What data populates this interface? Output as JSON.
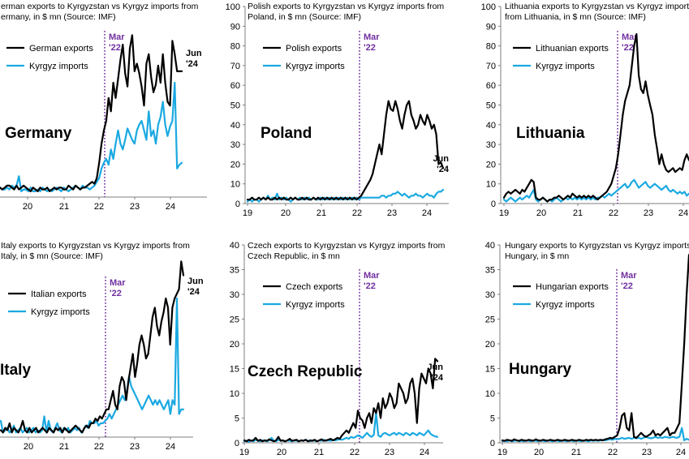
{
  "colors": {
    "exports": "#000000",
    "imports": "#1ba9e1",
    "marker": "#7030a0",
    "axis": "#7f7f7f"
  },
  "marker_label": [
    "Mar",
    "'22"
  ],
  "end_label": [
    "Jun",
    "'24"
  ],
  "chart_data": [
    {
      "type": "line",
      "title": [
        "erman exports to Kyrgyzstan vs Kyrgyz imports from",
        "ermany, in $ mn (Source: IMF)"
      ],
      "country": "Germany",
      "x_ticks": [
        "20",
        "21",
        "22",
        "23",
        "24"
      ],
      "y_ticks": [],
      "ylim": [
        0,
        100
      ],
      "series": [
        {
          "name": "German exports",
          "values": [
            5,
            4,
            5,
            6,
            6,
            5,
            4,
            6,
            4,
            5,
            6,
            5,
            4,
            3,
            5,
            4,
            3,
            5,
            4,
            4,
            5,
            3,
            4,
            5,
            4,
            5,
            5,
            4,
            4,
            6,
            5,
            4,
            6,
            5,
            4,
            5,
            5,
            6,
            7,
            8,
            7,
            10,
            18,
            28,
            35,
            40,
            52,
            45,
            60,
            52,
            62,
            72,
            80,
            65,
            58,
            78,
            85,
            66,
            70,
            65,
            58,
            48,
            70,
            75,
            63,
            55,
            59,
            69,
            60,
            75,
            60,
            50,
            48,
            82,
            75,
            66,
            66,
            66
          ]
        },
        {
          "name": "Kyrgyz imports",
          "values": [
            5,
            4,
            4,
            5,
            4,
            6,
            5,
            6,
            11,
            3,
            4,
            4,
            3,
            5,
            3,
            3,
            4,
            3,
            5,
            4,
            3,
            4,
            3,
            4,
            5,
            4,
            3,
            5,
            4,
            3,
            4,
            5,
            6,
            5,
            4,
            6,
            5,
            5,
            4,
            5,
            6,
            8,
            10,
            15,
            18,
            20,
            17,
            25,
            20,
            28,
            35,
            28,
            25,
            30,
            36,
            33,
            30,
            28,
            35,
            38,
            40,
            35,
            30,
            45,
            32,
            35,
            28,
            38,
            42,
            50,
            38,
            32,
            37,
            40,
            60,
            15,
            17,
            18
          ]
        }
      ]
    },
    {
      "type": "line",
      "title": [
        "Polish exports to Kyrgyzstan vs Kyrgyz imports from",
        "Poland, in $ mn (Source: IMF)"
      ],
      "country": "Poland",
      "x_ticks": [
        "19",
        "20",
        "21",
        "22",
        "23",
        "24"
      ],
      "y_ticks": [
        "0",
        "10",
        "20",
        "30",
        "40",
        "50",
        "60",
        "70",
        "80",
        "90",
        "100"
      ],
      "ylim": [
        0,
        100
      ],
      "series": [
        {
          "name": "Polish exports",
          "values": [
            2,
            2,
            3,
            2,
            2,
            3,
            2,
            3,
            2,
            3,
            2,
            2,
            3,
            2,
            3,
            2,
            3,
            2,
            2,
            3,
            2,
            3,
            2,
            2,
            3,
            2,
            3,
            2,
            2,
            3,
            2,
            3,
            2,
            3,
            2,
            3,
            2,
            3,
            2,
            3,
            2,
            3,
            2,
            3,
            2,
            3,
            2,
            3,
            2,
            3,
            4,
            6,
            8,
            10,
            12,
            15,
            20,
            25,
            30,
            25,
            35,
            45,
            52,
            48,
            47,
            52,
            48,
            42,
            38,
            45,
            50,
            52,
            45,
            42,
            38,
            40,
            45,
            42,
            40,
            45,
            42,
            38,
            40,
            35,
            20,
            21,
            18
          ]
        },
        {
          "name": "Kyrgyz imports",
          "values": [
            1,
            2,
            1,
            2,
            2,
            1,
            2,
            3,
            2,
            4,
            2,
            3,
            2,
            5,
            2,
            3,
            2,
            3,
            2,
            1,
            2,
            3,
            2,
            3,
            2,
            3,
            2,
            3,
            2,
            3,
            2,
            2,
            3,
            2,
            3,
            2,
            3,
            2,
            3,
            2,
            3,
            2,
            3,
            2,
            3,
            2,
            3,
            2,
            3,
            2,
            3,
            3,
            3,
            3,
            3,
            3,
            3,
            3,
            3,
            4,
            4,
            3,
            4,
            4,
            5,
            5,
            6,
            5,
            4,
            5,
            4,
            3,
            4,
            4,
            5,
            4,
            4,
            3,
            4,
            5,
            4,
            4,
            3,
            5,
            6,
            6,
            7
          ]
        }
      ]
    },
    {
      "type": "line",
      "title": [
        "Lithuania exports to Kyrgyzstan vs Kyrgyz imports",
        "from Lithuania, in $ mn (Source: IMF)"
      ],
      "country": "Lithuania",
      "x_ticks": [
        "19",
        "20",
        "21",
        "22",
        "23",
        "24"
      ],
      "y_ticks": [
        "0",
        "10",
        "20",
        "30",
        "40",
        "50",
        "60",
        "70",
        "80",
        "90",
        "100"
      ],
      "ylim": [
        0,
        100
      ],
      "series": [
        {
          "name": "Lithuanian exports",
          "values": [
            3,
            5,
            6,
            5,
            6,
            7,
            6,
            5,
            7,
            6,
            8,
            10,
            12,
            11,
            3,
            2,
            2,
            3,
            2,
            1,
            2,
            2,
            3,
            3,
            4,
            3,
            2,
            3,
            4,
            3,
            5,
            4,
            3,
            4,
            3,
            4,
            3,
            4,
            3,
            4,
            3,
            2,
            3,
            4,
            5,
            6,
            8,
            10,
            14,
            18,
            25,
            35,
            45,
            52,
            56,
            60,
            70,
            80,
            86,
            65,
            58,
            56,
            62,
            55,
            50,
            45,
            35,
            28,
            20,
            25,
            20,
            17,
            16,
            17,
            18,
            16,
            17,
            18,
            17,
            22,
            25,
            22
          ]
        },
        {
          "name": "Kyrgyz imports",
          "values": [
            2,
            1,
            2,
            3,
            2,
            1,
            2,
            3,
            2,
            3,
            4,
            3,
            5,
            7,
            2,
            1,
            2,
            3,
            2,
            1,
            2,
            1,
            2,
            3,
            2,
            1,
            2,
            3,
            2,
            3,
            2,
            3,
            2,
            3,
            2,
            3,
            2,
            3,
            2,
            3,
            2,
            3,
            3,
            4,
            3,
            4,
            5,
            4,
            5,
            6,
            7,
            8,
            9,
            10,
            8,
            9,
            11,
            12,
            10,
            8,
            9,
            10,
            11,
            9,
            8,
            9,
            10,
            9,
            8,
            7,
            8,
            9,
            7,
            6,
            7,
            6,
            5,
            6,
            5,
            6,
            4,
            5
          ]
        }
      ]
    },
    {
      "type": "line",
      "title": [
        "Italy exports to Kyrgyzstan vs Kyrgyz imports from",
        "Italy, in $ mn (Source: IMF)"
      ],
      "country": "Italy",
      "x_ticks": [
        "20",
        "21",
        "22",
        "23",
        "24"
      ],
      "y_ticks": [],
      "ylim": [
        0,
        40
      ],
      "series": [
        {
          "name": "Italian exports",
          "values": [
            1.5,
            1,
            2,
            1.5,
            3,
            1,
            2,
            1.5,
            1,
            2,
            3.5,
            1.5,
            1,
            2,
            1,
            1.5,
            2,
            1,
            1.5,
            2,
            1.5,
            1,
            2,
            1.5,
            1,
            2,
            1.5,
            2,
            1,
            2,
            1.5,
            1,
            1.5,
            2,
            2.5,
            2,
            1.5,
            1,
            2,
            2.5,
            2,
            3,
            3,
            4,
            3.5,
            4.5,
            4,
            5,
            6,
            6,
            8,
            10,
            7,
            6,
            11,
            13,
            12,
            8,
            12,
            15,
            18,
            13,
            16,
            20,
            22,
            20,
            17,
            18,
            22,
            26,
            28,
            24,
            22,
            25,
            27,
            30,
            28,
            20,
            28,
            30,
            31,
            32,
            38,
            35
          ]
        },
        {
          "name": "Kyrgyz imports",
          "values": [
            3.5,
            1,
            1.5,
            2,
            1,
            1.5,
            2.5,
            1,
            1.5,
            2,
            1,
            1.5,
            2,
            1,
            1.5,
            2,
            1,
            1.5,
            1,
            1.5,
            4.5,
            1,
            3.5,
            1.5,
            1,
            2,
            3,
            1.5,
            1,
            2,
            1.5,
            2,
            1,
            1.5,
            2,
            1.5,
            2,
            1,
            1.5,
            2.5,
            2,
            3.5,
            3,
            3,
            3.5,
            2.5,
            3,
            3,
            3.5,
            4,
            5,
            4,
            5,
            6,
            7,
            8,
            9,
            8,
            10,
            13,
            11,
            10,
            9,
            8,
            7,
            6,
            7,
            8,
            9,
            8,
            7,
            8,
            7,
            8,
            7,
            6,
            7,
            8,
            5,
            8,
            7,
            30,
            5,
            6,
            6
          ]
        }
      ]
    },
    {
      "type": "line",
      "title": [
        "Czech exports to Kyrgyzstan vs Kyrgyz imports from",
        "Czech Republic, in $ mn"
      ],
      "country": "Czech Republic",
      "x_ticks": [
        "19",
        "20",
        "21",
        "22",
        "23",
        "24"
      ],
      "y_ticks": [
        "0",
        "5",
        "10",
        "15",
        "20",
        "25",
        "30",
        "35",
        "40"
      ],
      "ylim": [
        0,
        40
      ],
      "series": [
        {
          "name": "Czech exports",
          "values": [
            0.5,
            0.3,
            0.6,
            0.4,
            0.5,
            1,
            0.4,
            0.6,
            0.3,
            0.5,
            0.4,
            0.7,
            0.5,
            0.3,
            0.5,
            1.2,
            0.4,
            0.5,
            0.3,
            0.5,
            0.8,
            0.4,
            0.5,
            0.6,
            0.3,
            0.5,
            0.4,
            0.6,
            0.3,
            0.5,
            0.4,
            0.6,
            0.3,
            0.5,
            0.7,
            0.4,
            0.5,
            0.6,
            0.8,
            0.5,
            0.7,
            1,
            0.8,
            1.5,
            2,
            2.5,
            2,
            3,
            4,
            3,
            6.5,
            5,
            4.5,
            3,
            5,
            6,
            4,
            7,
            6,
            8,
            5,
            9,
            7,
            8,
            10,
            9,
            7,
            8,
            12,
            11,
            10,
            8,
            9,
            12,
            13,
            10,
            4,
            11,
            14,
            13,
            12,
            15,
            14,
            11,
            17,
            16.5
          ]
        },
        {
          "name": "Kyrgyz imports",
          "values": [
            0.3,
            0.4,
            0.2,
            0.5,
            0.3,
            0.6,
            0.4,
            0.3,
            0.5,
            0.4,
            0.3,
            0.5,
            1,
            0.4,
            0.3,
            0.6,
            0.5,
            0.4,
            0.3,
            0.5,
            0.4,
            0.3,
            0.5,
            0.4,
            0.3,
            0.5,
            0.4,
            0.6,
            0.4,
            0.3,
            0.5,
            0.4,
            0.3,
            0.5,
            0.4,
            0.6,
            0.4,
            0.5,
            0.4,
            0.6,
            0.5,
            0.6,
            0.7,
            0.6,
            0.8,
            1,
            0.8,
            1.2,
            1,
            1.2,
            1.5,
            1.3,
            1,
            1.5,
            2,
            1.5,
            1.2,
            1.6,
            6,
            1.5,
            1.2,
            1.8,
            2,
            1.7,
            1.5,
            1.8,
            2,
            1.6,
            2,
            1.8,
            1.5,
            2,
            1.8,
            1.5,
            2,
            1.8,
            1.5,
            2,
            1.8,
            1.5,
            2,
            2.5,
            1.8,
            1.5,
            1.3,
            1.2
          ]
        }
      ]
    },
    {
      "type": "line",
      "title": [
        "Hungary exports to Kyrgyzstan vs Kyrgyz imports",
        "Hungary, in $ mn"
      ],
      "country": "Hungary",
      "x_ticks": [
        "19",
        "20",
        "21",
        "22",
        "23",
        "24"
      ],
      "y_ticks": [
        "0",
        "5",
        "10",
        "15",
        "20",
        "25",
        "30",
        "35",
        "40"
      ],
      "ylim": [
        0,
        40
      ],
      "series": [
        {
          "name": "Hungarian exports",
          "values": [
            0.5,
            0.4,
            0.6,
            0.5,
            0.4,
            0.7,
            0.5,
            0.4,
            0.6,
            0.5,
            0.4,
            0.6,
            0.5,
            0.4,
            0.7,
            0.5,
            0.4,
            0.6,
            0.5,
            0.4,
            0.6,
            0.5,
            0.4,
            0.6,
            0.5,
            0.4,
            0.6,
            0.5,
            0.4,
            0.6,
            0.5,
            0.4,
            0.6,
            0.5,
            0.4,
            0.6,
            0.5,
            0.6,
            0.5,
            0.6,
            0.5,
            0.6,
            0.5,
            0.7,
            0.8,
            1,
            0.9,
            1.2,
            1.5,
            3,
            5.5,
            6,
            3,
            2.5,
            6,
            1.2,
            1,
            1.5,
            2,
            1.5,
            1.2,
            1.5,
            1.8,
            2.5,
            1.5,
            1.8,
            1.5,
            2,
            2.5,
            3,
            1.5,
            2,
            2,
            3,
            4,
            12,
            20,
            30,
            38
          ]
        },
        {
          "name": "Kyrgyz imports",
          "values": [
            0.3,
            0.4,
            0.3,
            0.5,
            0.3,
            0.4,
            0.5,
            0.3,
            0.4,
            0.3,
            0.5,
            0.4,
            0.3,
            0.5,
            0.4,
            0.3,
            0.5,
            0.4,
            0.3,
            0.5,
            0.4,
            0.3,
            0.5,
            0.4,
            0.3,
            0.5,
            0.4,
            0.3,
            0.5,
            0.4,
            0.3,
            0.5,
            0.4,
            0.3,
            0.5,
            0.4,
            0.3,
            0.5,
            0.4,
            0.5,
            0.4,
            0.5,
            0.6,
            0.5,
            0.6,
            0.7,
            0.6,
            0.8,
            0.7,
            0.8,
            1,
            0.8,
            0.9,
            1,
            0.8,
            1,
            0.9,
            1,
            0.8,
            1,
            1.2,
            1,
            0.9,
            1,
            1.2,
            1,
            1.1,
            1,
            1.2,
            1.1,
            1,
            1.2,
            1.1,
            1,
            1.2,
            3,
            0.5,
            0.8,
            0.6
          ]
        }
      ]
    }
  ]
}
